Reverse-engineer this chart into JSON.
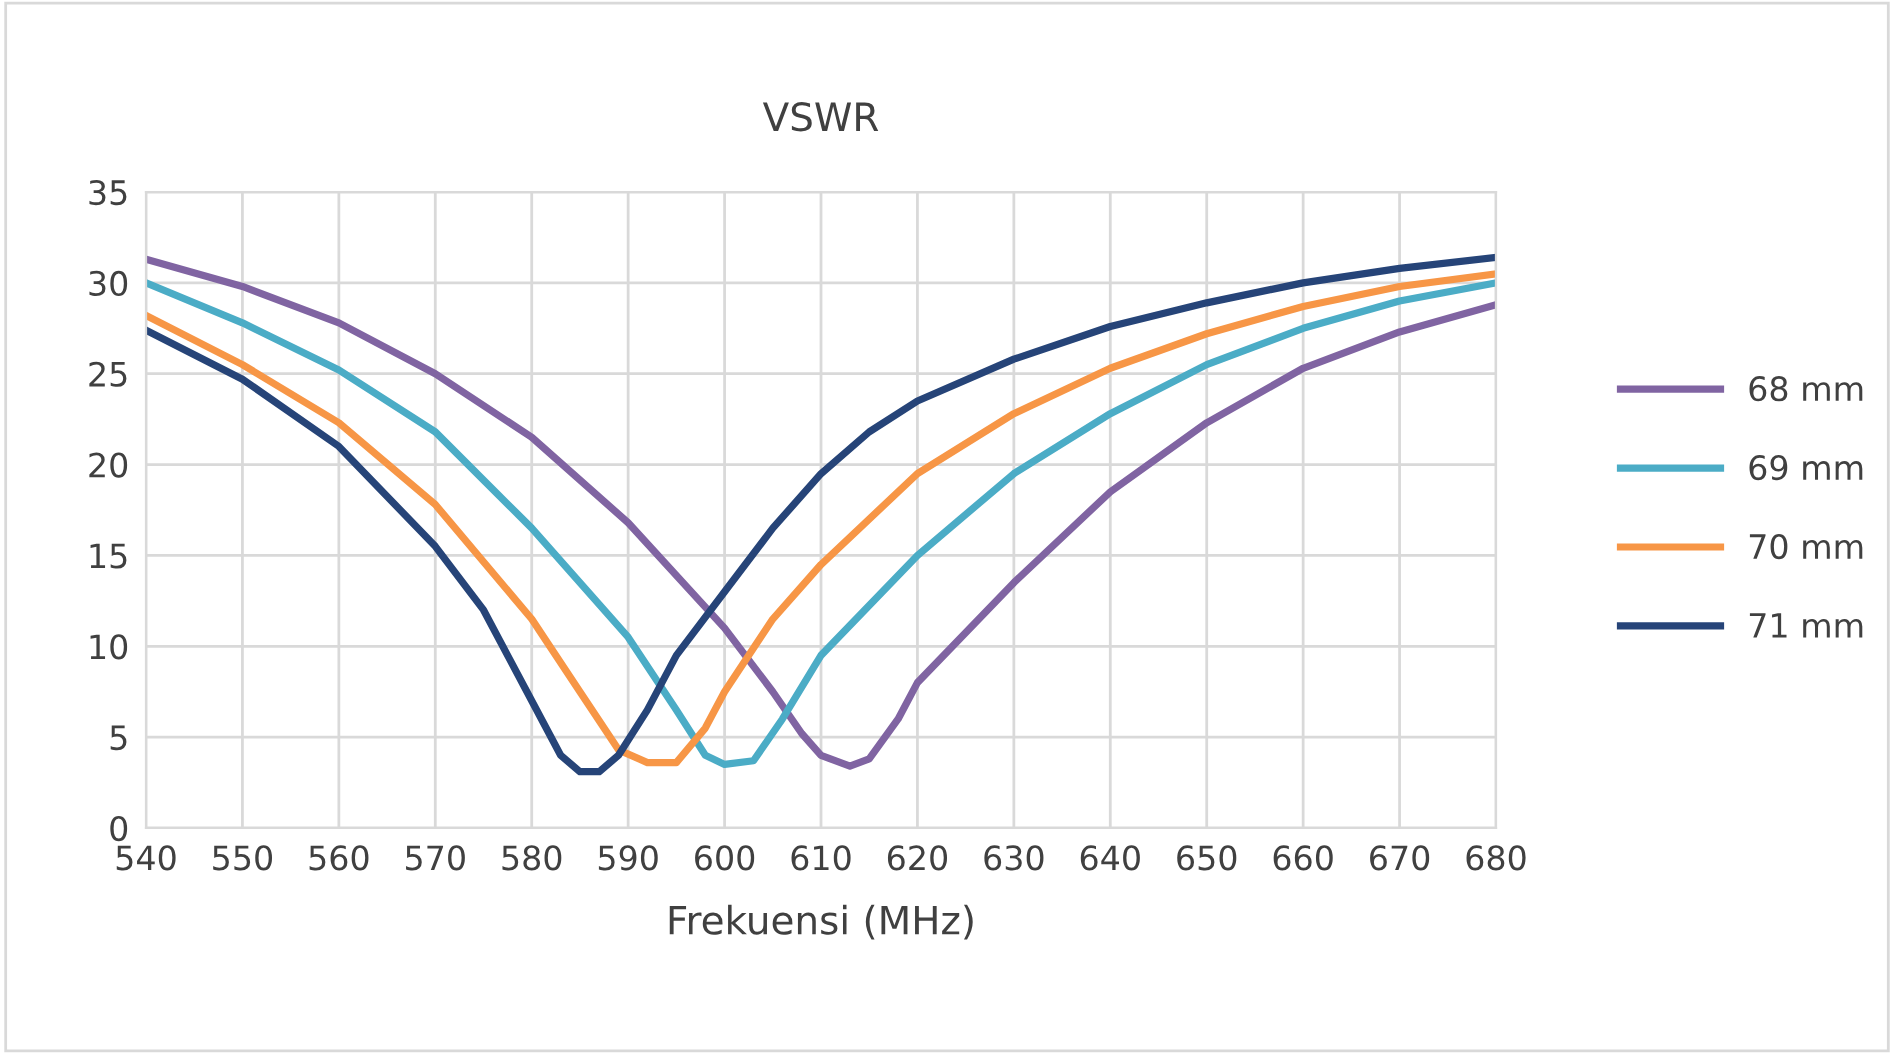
{
  "chart_data": {
    "type": "line",
    "title": "VSWR",
    "xlabel": "Frekuensi (MHz)",
    "xlim": [
      540,
      680
    ],
    "xticks": [
      540,
      550,
      560,
      570,
      580,
      590,
      600,
      610,
      620,
      630,
      640,
      650,
      660,
      670,
      680
    ],
    "ylim": [
      0,
      35
    ],
    "yticks": [
      0,
      5,
      10,
      15,
      20,
      25,
      30,
      35
    ],
    "grid": true,
    "legend": "right",
    "marker": "none",
    "line_style": "solid",
    "series": [
      {
        "name": "68 mm",
        "color": "#8064a2",
        "x": [
          540,
          550,
          560,
          570,
          580,
          590,
          600,
          605,
          608,
          610,
          613,
          615,
          618,
          620,
          630,
          640,
          650,
          660,
          670,
          680
        ],
        "values": [
          31.3,
          29.8,
          27.8,
          25,
          21.5,
          16.8,
          11,
          7.5,
          5.2,
          4,
          3.4,
          3.8,
          6,
          8,
          13.5,
          18.5,
          22.3,
          25.3,
          27.3,
          28.8
        ]
      },
      {
        "name": "69 mm",
        "color": "#4bacc6",
        "x": [
          540,
          550,
          560,
          570,
          580,
          590,
          595,
          598,
          600,
          603,
          606,
          610,
          620,
          630,
          640,
          650,
          660,
          670,
          680
        ],
        "values": [
          30,
          27.8,
          25.2,
          21.8,
          16.5,
          10.5,
          6.5,
          4,
          3.5,
          3.7,
          6,
          9.5,
          15,
          19.5,
          22.8,
          25.5,
          27.5,
          29,
          30
        ]
      },
      {
        "name": "70 mm",
        "color": "#f79646",
        "x": [
          540,
          550,
          560,
          570,
          580,
          585,
          589,
          592,
          595,
          598,
          600,
          605,
          610,
          615,
          620,
          630,
          640,
          650,
          660,
          670,
          680
        ],
        "values": [
          28.2,
          25.5,
          22.3,
          17.8,
          11.5,
          7.5,
          4.3,
          3.6,
          3.6,
          5.5,
          7.5,
          11.5,
          14.5,
          17,
          19.5,
          22.8,
          25.3,
          27.2,
          28.7,
          29.8,
          30.5
        ]
      },
      {
        "name": "71 mm",
        "color": "#264478",
        "x": [
          540,
          550,
          560,
          570,
          575,
          580,
          583,
          585,
          587,
          589,
          592,
          595,
          600,
          605,
          610,
          615,
          620,
          630,
          640,
          650,
          660,
          670,
          680
        ],
        "values": [
          27.4,
          24.7,
          21,
          15.5,
          12,
          7,
          4,
          3.1,
          3.1,
          4,
          6.5,
          9.5,
          13,
          16.5,
          19.5,
          21.8,
          23.5,
          25.8,
          27.6,
          28.9,
          30,
          30.8,
          31.4
        ]
      }
    ]
  }
}
